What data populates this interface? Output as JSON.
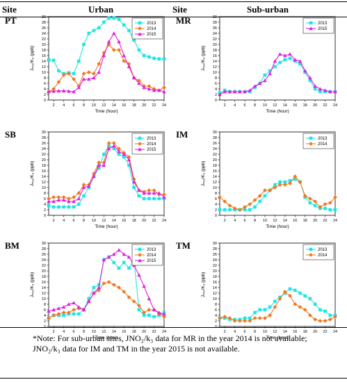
{
  "header": {
    "site": "Site",
    "urban": "Urban",
    "suburban": "Sub-urban"
  },
  "rows": [
    {
      "urban_site": "PT",
      "suburban_site": "MR"
    },
    {
      "urban_site": "SB",
      "suburban_site": "IM"
    },
    {
      "urban_site": "BM",
      "suburban_site": "TM"
    }
  ],
  "note": {
    "line1": "*Note: For sub-urban sites, JNO₂/k₃ data for MR in the year 2014 is not available;",
    "line2": "JNO₂/k₃ data for IM and TM in the year 2015 is not available."
  },
  "colors": {
    "2013": "#1FE5E5",
    "2014": "#F07820",
    "2015": "#E01EE0"
  },
  "markers": {
    "2013": "square",
    "2014": "diamond",
    "2015": "triangle"
  },
  "chart_data": [
    {
      "id": "PT",
      "type": "line",
      "xlabel": "Time (hour)",
      "ylabel": "Jₙₒ₂/K₃ (ppb)",
      "xlim": [
        1,
        24
      ],
      "ylim": [
        0,
        30
      ],
      "xticks": [
        2,
        4,
        6,
        8,
        10,
        12,
        14,
        16,
        18,
        20,
        22,
        24
      ],
      "yticks": [
        0,
        2,
        4,
        6,
        8,
        10,
        12,
        14,
        16,
        18,
        20,
        22,
        24,
        26,
        28,
        30
      ],
      "legend_position": "top-right",
      "x": [
        1,
        2,
        3,
        4,
        5,
        6,
        7,
        8,
        9,
        10,
        11,
        12,
        13,
        14,
        15,
        16,
        17,
        18,
        19,
        20,
        21,
        22,
        23,
        24
      ],
      "series": [
        {
          "name": "2013",
          "values": [
            14.5,
            14.3,
            10.5,
            9.5,
            9.8,
            9.5,
            14,
            20,
            24,
            25,
            26,
            28,
            29.5,
            29.5,
            29,
            27,
            25,
            21.5,
            18,
            16,
            15.5,
            15,
            14.8,
            14.8
          ]
        },
        {
          "name": "2014",
          "values": [
            3,
            4,
            6.5,
            9,
            9.5,
            7.5,
            5,
            9.5,
            10,
            9.5,
            13,
            17,
            20,
            18,
            18,
            14,
            13,
            8,
            7,
            5,
            5,
            4,
            3.5,
            4.5
          ]
        },
        {
          "name": "2015",
          "values": [
            3,
            3.2,
            3.3,
            3.3,
            3.2,
            3,
            4.5,
            7.5,
            7.5,
            8,
            10,
            16,
            21,
            24,
            21,
            16,
            12,
            8,
            6,
            4.5,
            4,
            3.5,
            3.5,
            3
          ]
        }
      ]
    },
    {
      "id": "MR",
      "type": "line",
      "xlabel": "Time (hour)",
      "ylabel": "Jₙₒ₂/K₃ (ppb)",
      "xlim": [
        1,
        24
      ],
      "ylim": [
        0,
        30
      ],
      "xticks": [
        2,
        4,
        6,
        8,
        10,
        12,
        14,
        16,
        18,
        20,
        22,
        24
      ],
      "yticks": [
        0,
        2,
        4,
        6,
        8,
        10,
        12,
        14,
        16,
        18,
        20,
        22,
        24,
        26,
        28,
        30
      ],
      "legend_position": "top-right",
      "x": [
        1,
        2,
        3,
        4,
        5,
        6,
        7,
        8,
        9,
        10,
        11,
        12,
        13,
        14,
        15,
        16,
        17,
        18,
        19,
        20,
        21,
        22,
        23,
        24
      ],
      "series": [
        {
          "name": "2013",
          "values": [
            2.5,
            3.5,
            3,
            3,
            3,
            3,
            3,
            4.5,
            6,
            9,
            10.5,
            12,
            13.5,
            14.5,
            15,
            14,
            13,
            10,
            7,
            4,
            3,
            3,
            3,
            3
          ]
        },
        {
          "name": "2015",
          "values": [
            2,
            3,
            3,
            3,
            3,
            3,
            3.5,
            5,
            6,
            7,
            9.5,
            14,
            16.5,
            16,
            16.5,
            14.5,
            14,
            10.5,
            8,
            5,
            4,
            3.5,
            3,
            3
          ]
        }
      ]
    },
    {
      "id": "SB",
      "type": "line",
      "xlabel": "Time (hour)",
      "ylabel": "Jₙₒ₂/K₃ (ppb)",
      "xlim": [
        1,
        24
      ],
      "ylim": [
        0,
        30
      ],
      "xticks": [
        2,
        4,
        6,
        8,
        10,
        12,
        14,
        16,
        18,
        20,
        22,
        24
      ],
      "yticks": [
        0,
        2,
        4,
        6,
        8,
        10,
        12,
        14,
        16,
        18,
        20,
        22,
        24,
        26,
        28,
        30
      ],
      "legend_position": "top-right",
      "x": [
        1,
        2,
        3,
        4,
        5,
        6,
        7,
        8,
        9,
        10,
        11,
        12,
        13,
        14,
        15,
        16,
        17,
        18,
        19,
        20,
        21,
        22,
        23,
        24
      ],
      "series": [
        {
          "name": "2013",
          "values": [
            3.5,
            3,
            3,
            3,
            3,
            3,
            4,
            7,
            10,
            14,
            17,
            22,
            25,
            24,
            22,
            21,
            18,
            10,
            7,
            6,
            6,
            6,
            6,
            6
          ]
        },
        {
          "name": "2014",
          "values": [
            6,
            6.5,
            6.5,
            6.5,
            6,
            6.5,
            8,
            11,
            11,
            15,
            19,
            19,
            26,
            26,
            24,
            22.5,
            21,
            13,
            9,
            8.5,
            9,
            9,
            7.5,
            7.5
          ]
        },
        {
          "name": "2015",
          "values": [
            5,
            5,
            5.5,
            5.5,
            5,
            5,
            6,
            10,
            10.5,
            14,
            18,
            18,
            24,
            25,
            23,
            22,
            20,
            12,
            9,
            8,
            8,
            8,
            8,
            6.5
          ]
        }
      ]
    },
    {
      "id": "IM",
      "type": "line",
      "xlabel": "Time (hour)",
      "ylabel": "Jₙₒ₂/K₃ (ppb)",
      "xlim": [
        1,
        24
      ],
      "ylim": [
        0,
        30
      ],
      "xticks": [
        2,
        4,
        6,
        8,
        10,
        12,
        14,
        16,
        18,
        20,
        22,
        24
      ],
      "yticks": [
        0,
        2,
        4,
        6,
        8,
        10,
        12,
        14,
        16,
        18,
        20,
        22,
        24,
        26,
        28,
        30
      ],
      "legend_position": "top-right",
      "x": [
        1,
        2,
        3,
        4,
        5,
        6,
        7,
        8,
        9,
        10,
        11,
        12,
        13,
        14,
        15,
        16,
        17,
        18,
        19,
        20,
        21,
        22,
        23,
        24
      ],
      "series": [
        {
          "name": "2013",
          "values": [
            2,
            2,
            2,
            2,
            2,
            2,
            2,
            3,
            5,
            7,
            9,
            11,
            12,
            12,
            12.5,
            13,
            12,
            6.5,
            4.5,
            3.5,
            2.5,
            2.5,
            2,
            2
          ]
        },
        {
          "name": "2014",
          "values": [
            6.5,
            5,
            3.5,
            2.5,
            2,
            3,
            4,
            5.5,
            7,
            9,
            9,
            10,
            11,
            11,
            11.5,
            14,
            12,
            7,
            6,
            5,
            3,
            4,
            4.5,
            6.5
          ]
        }
      ]
    },
    {
      "id": "BM",
      "type": "line",
      "xlabel": "Time (hour)",
      "ylabel": "Jₙₒ₂/K₃ (ppb)",
      "xlim": [
        1,
        24
      ],
      "ylim": [
        0,
        30
      ],
      "xticks": [
        2,
        4,
        6,
        8,
        10,
        12,
        14,
        16,
        18,
        20,
        22,
        24
      ],
      "yticks": [
        0,
        2,
        4,
        6,
        8,
        10,
        12,
        14,
        16,
        18,
        20,
        22,
        24,
        26,
        28,
        30
      ],
      "legend_position": "top-right",
      "x": [
        1,
        2,
        3,
        4,
        5,
        6,
        7,
        8,
        9,
        10,
        11,
        12,
        13,
        14,
        15,
        16,
        17,
        18,
        19,
        20,
        21,
        22,
        23,
        24
      ],
      "series": [
        {
          "name": "2013",
          "values": [
            3,
            4,
            4,
            4,
            4.5,
            4.5,
            4.5,
            6,
            10,
            14,
            15,
            24,
            25,
            23,
            21,
            23,
            21,
            24,
            6,
            4,
            4,
            3.5,
            4,
            5
          ]
        },
        {
          "name": "2014",
          "values": [
            3,
            4,
            4.5,
            5,
            5,
            6,
            6.5,
            6,
            9,
            12,
            13,
            15.5,
            16,
            15,
            14,
            12.5,
            10.5,
            9,
            7.5,
            5,
            6,
            6,
            4.5,
            3.5
          ]
        },
        {
          "name": "2015",
          "values": [
            5.5,
            6,
            6.5,
            7,
            8,
            8.5,
            7,
            6,
            9,
            12,
            14,
            24,
            25,
            26,
            27.5,
            26,
            25,
            22,
            18.5,
            14.5,
            10,
            6,
            5,
            4.5
          ]
        }
      ]
    },
    {
      "id": "TM",
      "type": "line",
      "xlabel": "Time (hour)",
      "ylabel": "Jₙₒ₂/K₃ (ppb)",
      "xlim": [
        1,
        24
      ],
      "ylim": [
        0,
        30
      ],
      "xticks": [
        2,
        4,
        6,
        8,
        10,
        12,
        14,
        16,
        18,
        20,
        22,
        24
      ],
      "yticks": [
        0,
        2,
        4,
        6,
        8,
        10,
        12,
        14,
        16,
        18,
        20,
        22,
        24,
        26,
        28,
        30
      ],
      "legend_position": "top-right",
      "x": [
        1,
        2,
        3,
        4,
        5,
        6,
        7,
        8,
        9,
        10,
        11,
        12,
        13,
        14,
        15,
        16,
        17,
        18,
        19,
        20,
        21,
        22,
        23,
        24
      ],
      "series": [
        {
          "name": "2013",
          "values": [
            3,
            3,
            2.5,
            2.5,
            2.5,
            3,
            3,
            5,
            6,
            6,
            7,
            9,
            10.5,
            12,
            13.5,
            13,
            12,
            11,
            10,
            8,
            6,
            5.5,
            4,
            4
          ]
        },
        {
          "name": "2014",
          "values": [
            3,
            3.5,
            3,
            2,
            2,
            2,
            2,
            3,
            3,
            3,
            4,
            7,
            10,
            12.5,
            11,
            8,
            7,
            6,
            4,
            2.5,
            2,
            2,
            2.5,
            3.5
          ]
        }
      ]
    }
  ]
}
